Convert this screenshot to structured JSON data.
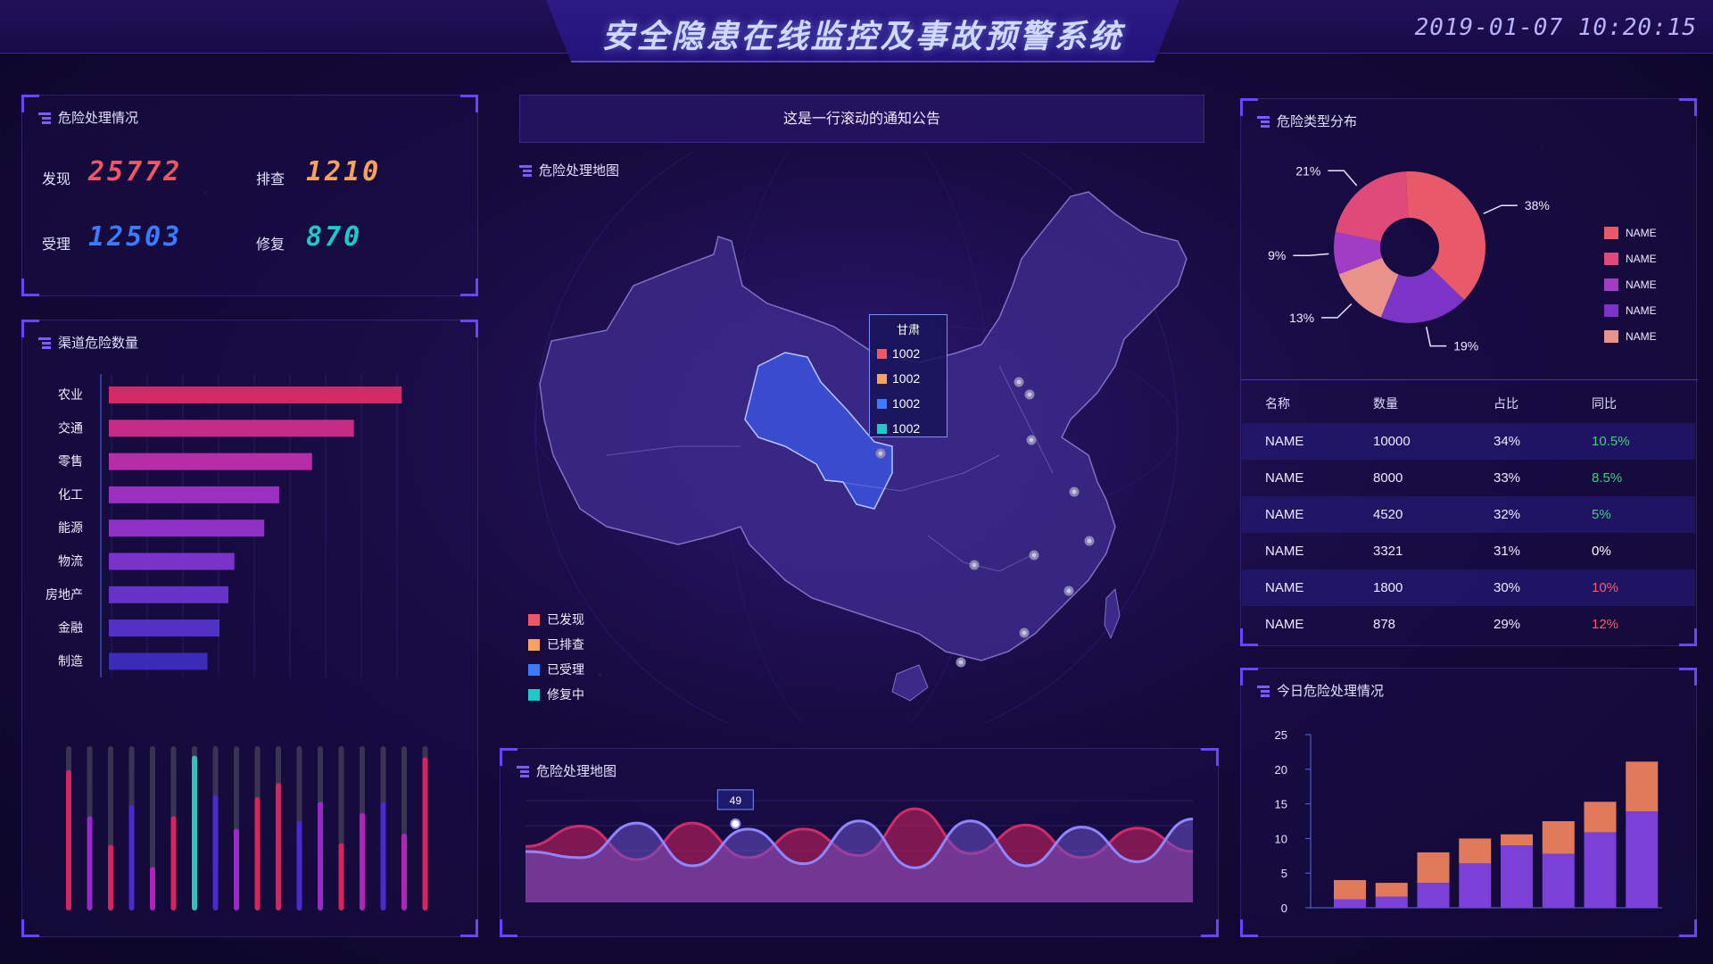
{
  "header": {
    "title": "安全隐患在线监控及事故预警系统",
    "datetime": "2019-01-07 10:20:15"
  },
  "colors": {
    "found": "#ef5667",
    "check": "#f7a35c",
    "accept": "#3a7bff",
    "repair": "#1ec9c9"
  },
  "hazard_handling": {
    "title": "危险处理情况",
    "stats": [
      {
        "label": "发现",
        "value": "25772",
        "color": "#ef5667"
      },
      {
        "label": "排查",
        "value": "1210",
        "color": "#f7a35c"
      },
      {
        "label": "受理",
        "value": "12503",
        "color": "#3a7bff"
      },
      {
        "label": "修复",
        "value": "870",
        "color": "#1ec9c9"
      }
    ]
  },
  "channel_hazards": {
    "title": "渠道危险数量",
    "chart_data": {
      "type": "bar",
      "orientation": "horizontal",
      "categories": [
        "农业",
        "交通",
        "零售",
        "化工",
        "能源",
        "物流",
        "房地产",
        "金融",
        "制造"
      ],
      "values": [
        98,
        82,
        68,
        57,
        52,
        42,
        40,
        37,
        33
      ],
      "colors": [
        "#d22a64",
        "#c42c86",
        "#b52ea8",
        "#9b30c0",
        "#8e32c6",
        "#7a33c8",
        "#6633c8",
        "#5232c6",
        "#3a2bb8"
      ]
    }
  },
  "vertical_bars": {
    "chart_data": {
      "type": "bar",
      "values": [
        0.85,
        0.56,
        0.38,
        0.63,
        0.24,
        0.56,
        0.94,
        0.69,
        0.48,
        0.68,
        0.77,
        0.53,
        0.65,
        0.39,
        0.58,
        0.65,
        0.45,
        0.93
      ],
      "colors": [
        "#d6245e",
        "#9b28c8",
        "#d6245e",
        "#4a2ad0",
        "#b024b8",
        "#d6245e",
        "#2ec4b6",
        "#4a2ad0",
        "#9b28c8",
        "#d6245e",
        "#d6245e",
        "#4a2ad0",
        "#9b28c8",
        "#d6245e",
        "#b024b8",
        "#4a2ad0",
        "#b024b8",
        "#d6245e"
      ]
    }
  },
  "notice": {
    "text": "这是一行滚动的通知公告"
  },
  "map": {
    "title": "危险处理地图",
    "legend": [
      "已发现",
      "已排查",
      "已受理",
      "修复中"
    ],
    "tooltip": {
      "title": "甘肃",
      "rows": [
        "1002",
        "1002",
        "1002",
        "1002"
      ]
    }
  },
  "wave_chart": {
    "title": "危险处理地图",
    "marker_label": "49",
    "chart_data": {
      "type": "area",
      "series": [
        {
          "values": [
            0.55,
            0.75,
            0.42,
            0.78,
            0.44,
            0.72,
            0.46,
            0.92,
            0.48,
            0.76,
            0.44,
            0.73,
            0.5
          ]
        },
        {
          "values": [
            0.5,
            0.44,
            0.78,
            0.36,
            0.72,
            0.38,
            0.8,
            0.34,
            0.8,
            0.36,
            0.74,
            0.4,
            0.82
          ]
        }
      ]
    }
  },
  "hazard_types": {
    "title": "危险类型分布",
    "chart_data": {
      "type": "pie",
      "values": [
        38,
        19,
        13,
        9,
        21
      ],
      "labels": [
        "38%",
        "19%",
        "13%",
        "9%",
        "21%"
      ],
      "colors": [
        "#e85a6a",
        "#7b34c6",
        "#e8928a",
        "#a13cc4",
        "#e04a7a"
      ]
    },
    "legend": [
      {
        "name": "NAME",
        "color": "#e85a6a"
      },
      {
        "name": "NAME",
        "color": "#e04a7a"
      },
      {
        "name": "NAME",
        "color": "#a13cc4"
      },
      {
        "name": "NAME",
        "color": "#7b34c6"
      },
      {
        "name": "NAME",
        "color": "#e8928a"
      }
    ]
  },
  "table": {
    "headers": [
      "名称",
      "数量",
      "占比",
      "同比"
    ],
    "rows": [
      {
        "name": "NAME",
        "count": "10000",
        "share": "34%",
        "yoy": "10.5%",
        "yoy_color": "#3fd07a"
      },
      {
        "name": "NAME",
        "count": "8000",
        "share": "33%",
        "yoy": "8.5%",
        "yoy_color": "#3fd07a"
      },
      {
        "name": "NAME",
        "count": "4520",
        "share": "32%",
        "yoy": "5%",
        "yoy_color": "#3fd07a"
      },
      {
        "name": "NAME",
        "count": "3321",
        "share": "31%",
        "yoy": "0%",
        "yoy_color": "#ffffff"
      },
      {
        "name": "NAME",
        "count": "1800",
        "share": "30%",
        "yoy": "10%",
        "yoy_color": "#ff5a6a"
      },
      {
        "name": "NAME",
        "count": "878",
        "share": "29%",
        "yoy": "12%",
        "yoy_color": "#ff5a6a"
      }
    ]
  },
  "today_handling": {
    "title": "今日危险处理情况",
    "chart_data": {
      "type": "bar",
      "stacked": true,
      "y_ticks": [
        "0",
        "5",
        "10",
        "15",
        "20",
        "25"
      ],
      "ylim": [
        0,
        25
      ],
      "series": [
        {
          "values": [
            1.2,
            1.6,
            3.6,
            6.4,
            9.0,
            7.8,
            10.9,
            13.9
          ],
          "color": "#7a40d8"
        },
        {
          "values": [
            2.8,
            2.0,
            4.4,
            3.6,
            1.6,
            4.7,
            4.4,
            7.2
          ],
          "color": "#e07a5a"
        }
      ]
    }
  }
}
